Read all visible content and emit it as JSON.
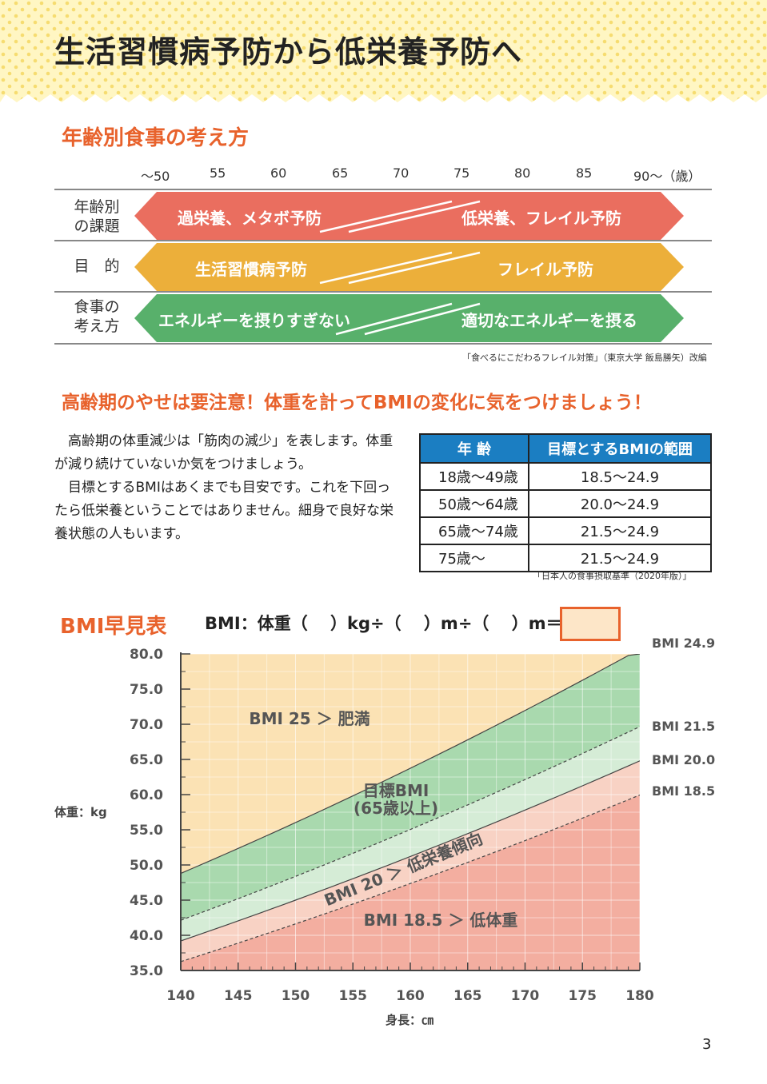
{
  "page_title": "生活習慣病予防から低栄養予防へ",
  "section1": {
    "title": "年齢別食事の考え方",
    "age_ticks": [
      "～50",
      "55",
      "60",
      "65",
      "70",
      "75",
      "80",
      "85",
      "90～（歳）"
    ],
    "rows": [
      {
        "label_line1": "年齢別",
        "label_line2": "の課題",
        "left_text": "過栄養、メタボ予防",
        "right_text": "低栄養、フレイル予防",
        "color": "#ea6e5f"
      },
      {
        "label_line1": "目　的",
        "label_line2": "",
        "left_text": "生活習慣病予防",
        "right_text": "フレイル予防",
        "color": "#ecaf3a"
      },
      {
        "label_line1": "食事の",
        "label_line2": "考え方",
        "left_text": "エネルギーを摂りすぎない",
        "right_text": "適切なエネルギーを摂る",
        "color": "#58b06b"
      }
    ],
    "source": "「食べるにこだわるフレイル対策」（東京大学 飯島勝矢）改編"
  },
  "section2": {
    "title": "高齢期のやせは要注意！体重を計ってBMIの変化に気をつけましょう！",
    "paragraphs": [
      "　高齢期の体重減少は「筋肉の減少」を表します。体重が減り続けていないか気をつけましょう。",
      "　目標とするBMIはあくまでも目安です。これを下回ったら低栄養ということではありません。細身で良好な栄養状態の人もいます。"
    ],
    "table": {
      "headers": [
        "年 齢",
        "目標とするBMIの範囲"
      ],
      "rows": [
        [
          "18歳～49歳",
          "18.5～24.9"
        ],
        [
          "50歳～64歳",
          "20.0～24.9"
        ],
        [
          "65歳～74歳",
          "21.5～24.9"
        ],
        [
          "75歳～",
          "21.5～24.9"
        ]
      ],
      "header_color": "#1b7ec2"
    },
    "source": "「日本人の食事摂取基準（2020年版）」"
  },
  "section3": {
    "title": "BMI早見表",
    "formula": "BMI：体重（　  ）kg÷（　  ）m÷（　  ）m＝"
  },
  "chart_data": {
    "type": "area",
    "xlabel": "身長：㎝",
    "ylabel": "体重：kg",
    "x_ticks": [
      "140",
      "145",
      "150",
      "155",
      "160",
      "165",
      "170",
      "175",
      "180"
    ],
    "y_ticks": [
      "35.0",
      "40.0",
      "45.0",
      "50.0",
      "55.0",
      "60.0",
      "65.0",
      "70.0",
      "75.0",
      "80.0"
    ],
    "xlim": [
      140,
      180
    ],
    "ylim": [
      35,
      80
    ],
    "grid": true,
    "curves": [
      {
        "name": "BMI 24.9",
        "bmi": 24.9,
        "style": "solid"
      },
      {
        "name": "BMI 21.5",
        "bmi": 21.5,
        "style": "dashed"
      },
      {
        "name": "BMI 20.0",
        "bmi": 20.0,
        "style": "solid"
      },
      {
        "name": "BMI 18.5",
        "bmi": 18.5,
        "style": "dashed"
      }
    ],
    "regions": [
      {
        "label": "BMI 25 ＞ 肥満",
        "color": "#fbe2b4"
      },
      {
        "label": "目標BMI",
        "label2": "(65歳以上)",
        "color": "#a9d9ae"
      },
      {
        "label": "",
        "color": "#d5ecd6"
      },
      {
        "label": "BMI 20 ＞ 低栄養傾向",
        "color": "#f8d2c4"
      },
      {
        "label": "BMI 18.5 ＞ 低体重",
        "color": "#f3aea0"
      }
    ]
  },
  "page_number": "3"
}
